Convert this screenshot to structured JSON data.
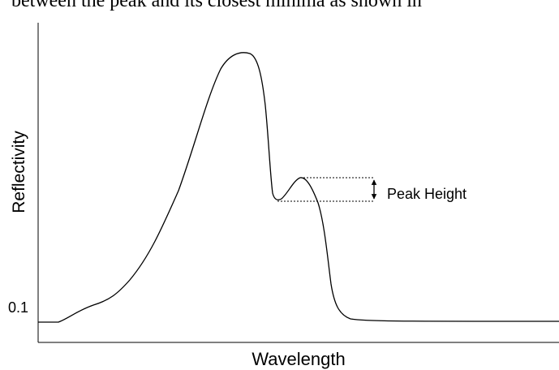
{
  "caption_fragment": "between the peak and its closest minima as shown in",
  "diagram": {
    "y_axis_label": "Reflectivity",
    "x_axis_label": "Wavelength",
    "y_tick": "0.1",
    "annotation": "Peak Height"
  }
}
